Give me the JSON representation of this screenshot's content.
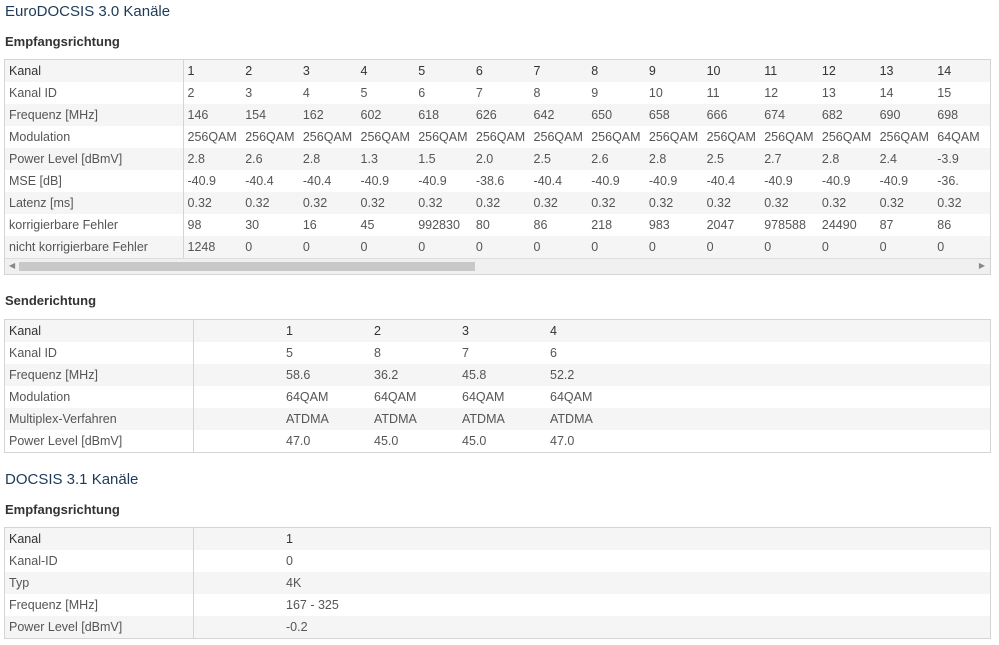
{
  "sections": {
    "euro_title": "EuroDOCSIS 3.0 Kanäle",
    "euro_down": "Empfangsrichtung",
    "euro_up": "Senderichtung",
    "docsis31_title": "DOCSIS 3.1 Kanäle",
    "docsis31_down": "Empfangsrichtung"
  },
  "euro_downstream": [
    {
      "label": "Kanal",
      "values": [
        "1",
        "2",
        "3",
        "4",
        "5",
        "6",
        "7",
        "8",
        "9",
        "10",
        "11",
        "12",
        "13",
        "14"
      ]
    },
    {
      "label": "Kanal ID",
      "values": [
        "2",
        "3",
        "4",
        "5",
        "6",
        "7",
        "8",
        "9",
        "10",
        "11",
        "12",
        "13",
        "14",
        "15"
      ]
    },
    {
      "label": "Frequenz [MHz]",
      "values": [
        "146",
        "154",
        "162",
        "602",
        "618",
        "626",
        "642",
        "650",
        "658",
        "666",
        "674",
        "682",
        "690",
        "698"
      ]
    },
    {
      "label": "Modulation",
      "values": [
        "256QAM",
        "256QAM",
        "256QAM",
        "256QAM",
        "256QAM",
        "256QAM",
        "256QAM",
        "256QAM",
        "256QAM",
        "256QAM",
        "256QAM",
        "256QAM",
        "256QAM",
        "64QAM"
      ]
    },
    {
      "label": "Power Level [dBmV]",
      "values": [
        "2.8",
        "2.6",
        "2.8",
        "1.3",
        "1.5",
        "2.0",
        "2.5",
        "2.6",
        "2.8",
        "2.5",
        "2.7",
        "2.8",
        "2.4",
        "-3.9"
      ]
    },
    {
      "label": "MSE [dB]",
      "values": [
        "-40.9",
        "-40.4",
        "-40.4",
        "-40.9",
        "-40.9",
        "-38.6",
        "-40.4",
        "-40.9",
        "-40.9",
        "-40.4",
        "-40.9",
        "-40.9",
        "-40.9",
        "-36."
      ]
    },
    {
      "label": "Latenz [ms]",
      "values": [
        "0.32",
        "0.32",
        "0.32",
        "0.32",
        "0.32",
        "0.32",
        "0.32",
        "0.32",
        "0.32",
        "0.32",
        "0.32",
        "0.32",
        "0.32",
        "0.32"
      ]
    },
    {
      "label": "korrigierbare Fehler",
      "values": [
        "98",
        "30",
        "16",
        "45",
        "992830",
        "80",
        "86",
        "218",
        "983",
        "2047",
        "978588",
        "24490",
        "87",
        "86"
      ]
    },
    {
      "label": "nicht korrigierbare Fehler",
      "values": [
        "1248",
        "0",
        "0",
        "0",
        "0",
        "0",
        "0",
        "0",
        "0",
        "0",
        "0",
        "0",
        "0",
        "0"
      ]
    }
  ],
  "euro_upstream": [
    {
      "label": "Kanal",
      "values": [
        "1",
        "2",
        "3",
        "4"
      ]
    },
    {
      "label": "Kanal ID",
      "values": [
        "5",
        "8",
        "7",
        "6"
      ]
    },
    {
      "label": "Frequenz [MHz]",
      "values": [
        "58.6",
        "36.2",
        "45.8",
        "52.2"
      ]
    },
    {
      "label": "Modulation",
      "values": [
        "64QAM",
        "64QAM",
        "64QAM",
        "64QAM"
      ]
    },
    {
      "label": "Multiplex-Verfahren",
      "values": [
        "ATDMA",
        "ATDMA",
        "ATDMA",
        "ATDMA"
      ]
    },
    {
      "label": "Power Level [dBmV]",
      "values": [
        "47.0",
        "45.0",
        "45.0",
        "47.0"
      ]
    }
  ],
  "docsis31_downstream": [
    {
      "label": "Kanal",
      "values": [
        "1"
      ]
    },
    {
      "label": "Kanal-ID",
      "values": [
        "0"
      ]
    },
    {
      "label": "Typ",
      "values": [
        "4K"
      ]
    },
    {
      "label": "Frequenz [MHz]",
      "values": [
        "167 - 325"
      ]
    },
    {
      "label": "Power Level [dBmV]",
      "values": [
        "-0.2"
      ]
    }
  ]
}
